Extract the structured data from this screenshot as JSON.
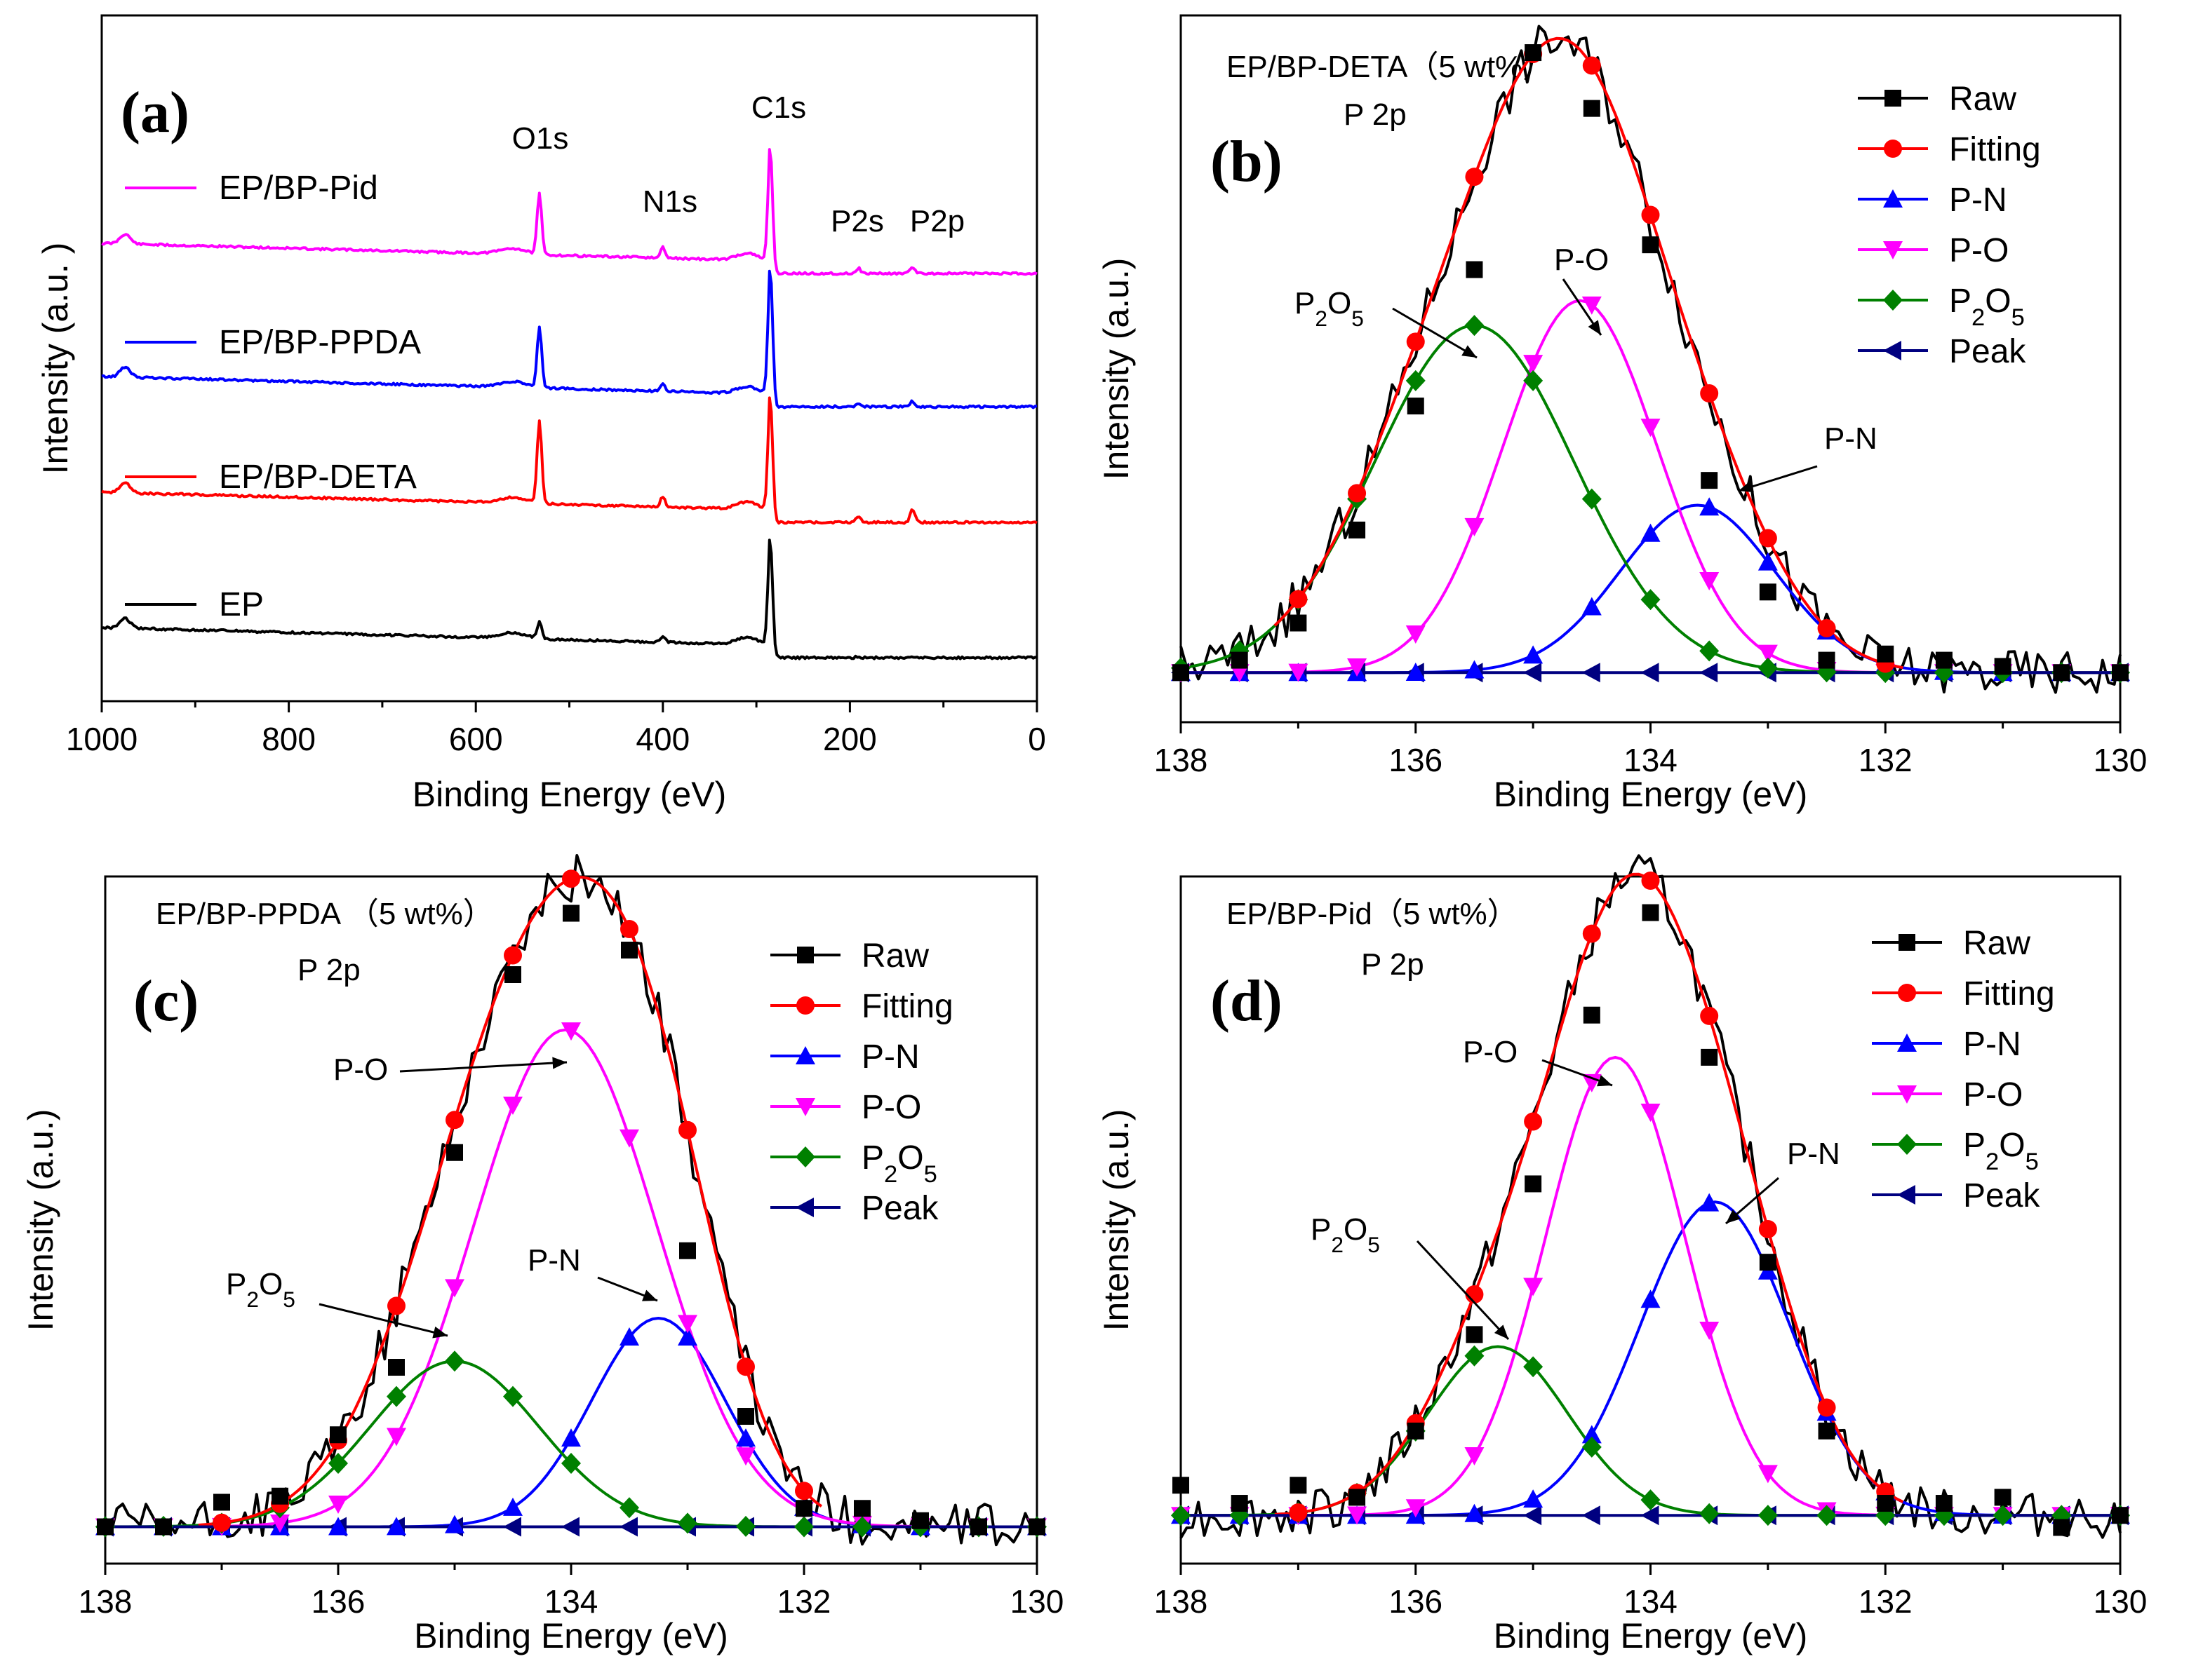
{
  "chart_data": [
    {
      "id": "a",
      "type": "line",
      "panel_label": "(a)",
      "xlabel": "Binding Energy (eV)",
      "ylabel": "Intensity (a.u. )",
      "xlim": [
        1000,
        0
      ],
      "xticks": [
        1000,
        800,
        600,
        400,
        200,
        0
      ],
      "peak_labels": [
        "O1s",
        "N1s",
        "C1s",
        "P2s",
        "P2p"
      ],
      "peaks_eV": [
        532,
        400,
        285,
        191,
        133
      ],
      "series": [
        {
          "name": "EP/BP-Pid",
          "color": "#ff00ff",
          "peak_heights": [
            45,
            8,
            90,
            4,
            5
          ]
        },
        {
          "name": "EP/BP-PPDA",
          "color": "#0000ff",
          "peak_heights": [
            45,
            5,
            100,
            3,
            4
          ]
        },
        {
          "name": "EP/BP-DETA",
          "color": "#ff0000",
          "peak_heights": [
            62,
            8,
            90,
            5,
            10
          ]
        },
        {
          "name": "EP",
          "color": "#000000",
          "peak_heights": [
            12,
            5,
            85,
            1,
            1
          ]
        }
      ]
    },
    {
      "id": "b",
      "type": "line",
      "panel_label": "(b)",
      "title": "EP/BP-DETA（5 wt%）",
      "subtitle": "P 2p",
      "xlabel": "Binding Energy (eV)",
      "ylabel": "Intensity (a.u.)",
      "xlim": [
        138,
        130
      ],
      "xticks": [
        138,
        136,
        134,
        132,
        130
      ],
      "ylim": [
        -0.08,
        1.06
      ],
      "legend": [
        "Raw",
        "Fitting",
        "P-N",
        "P-O",
        "P2O5",
        "Peak"
      ],
      "components": [
        {
          "name": "P-N",
          "center": 133.6,
          "height": 0.27,
          "fwhm": 1.55
        },
        {
          "name": "P-O",
          "center": 134.6,
          "height": 0.6,
          "fwhm": 1.55
        },
        {
          "name": "P2O5",
          "center": 135.5,
          "height": 0.56,
          "fwhm": 2.0
        }
      ],
      "raw_markers": {
        "x": [
          138,
          137.5,
          137,
          136.5,
          136,
          135.5,
          135,
          134.5,
          134,
          133.5,
          133,
          132.5,
          132,
          131.5,
          131,
          130.5,
          130
        ],
        "y": [
          0.0,
          0.02,
          0.08,
          0.23,
          0.43,
          0.65,
          1.0,
          0.91,
          0.69,
          0.31,
          0.13,
          0.02,
          0.03,
          0.02,
          0.01,
          0.0,
          0.0
        ]
      },
      "annotations": [
        "P-O",
        "P2O5",
        "P-N"
      ]
    },
    {
      "id": "c",
      "type": "line",
      "panel_label": "(c)",
      "title": "EP/BP-PPDA （5 wt%）",
      "subtitle": "P 2p",
      "xlabel": "Binding Energy (eV)",
      "ylabel": "Intensity (a.u.)",
      "xlim": [
        138,
        130
      ],
      "xticks": [
        138,
        136,
        134,
        132,
        130
      ],
      "ylim": [
        -0.06,
        1.06
      ],
      "legend": [
        "Raw",
        "Fitting",
        "P-N",
        "P-O",
        "P2O5",
        "Peak"
      ],
      "components": [
        {
          "name": "P-N",
          "center": 133.25,
          "height": 0.34,
          "fwhm": 1.35
        },
        {
          "name": "P-O",
          "center": 134.05,
          "height": 0.81,
          "fwhm": 1.85
        },
        {
          "name": "P2O5",
          "center": 135.0,
          "height": 0.27,
          "fwhm": 1.7
        }
      ],
      "raw_markers": {
        "x": [
          138,
          137.5,
          137,
          136.5,
          136,
          135.5,
          135,
          134.5,
          134,
          133.5,
          133,
          132.5,
          132,
          131.5,
          131,
          130.5,
          130
        ],
        "y": [
          0.0,
          0.0,
          0.04,
          0.05,
          0.15,
          0.26,
          0.61,
          0.9,
          1.0,
          0.94,
          0.45,
          0.18,
          0.03,
          0.03,
          0.01,
          0.0,
          0.0
        ]
      },
      "annotations": [
        "P-O",
        "P2O5",
        "P-N"
      ]
    },
    {
      "id": "d",
      "type": "line",
      "panel_label": "(d)",
      "title": "EP/BP-Pid（5 wt%）",
      "subtitle": "P 2p",
      "xlabel": "Binding Energy (eV)",
      "ylabel": "Intensity (a.u.)",
      "xlim": [
        138,
        130
      ],
      "xticks": [
        138,
        136,
        134,
        132,
        130
      ],
      "ylim": [
        -0.08,
        1.06
      ],
      "legend": [
        "Raw",
        "Fitting",
        "P-N",
        "P-O",
        "P2O5",
        "Peak"
      ],
      "components": [
        {
          "name": "P-N",
          "center": 133.45,
          "height": 0.52,
          "fwhm": 1.5
        },
        {
          "name": "P-O",
          "center": 134.3,
          "height": 0.76,
          "fwhm": 1.4
        },
        {
          "name": "P2O5",
          "center": 135.3,
          "height": 0.28,
          "fwhm": 1.4
        }
      ],
      "raw_markers": {
        "x": [
          138,
          137.5,
          137,
          136.5,
          136,
          135.5,
          135,
          134.5,
          134,
          133.5,
          133,
          132.5,
          132,
          131.5,
          131,
          130.5,
          130
        ],
        "y": [
          0.05,
          0.02,
          0.05,
          0.03,
          0.14,
          0.3,
          0.55,
          0.83,
          1.0,
          0.76,
          0.42,
          0.14,
          0.02,
          0.02,
          0.03,
          -0.02,
          0.0
        ]
      },
      "annotations": [
        "P-O",
        "P2O5",
        "P-N"
      ]
    }
  ],
  "colors": {
    "Raw": "#000000",
    "Fitting": "#ff0000",
    "P-N": "#0000ff",
    "P-O": "#ff00ff",
    "P2O5": "#008000",
    "Peak": "#000080"
  }
}
